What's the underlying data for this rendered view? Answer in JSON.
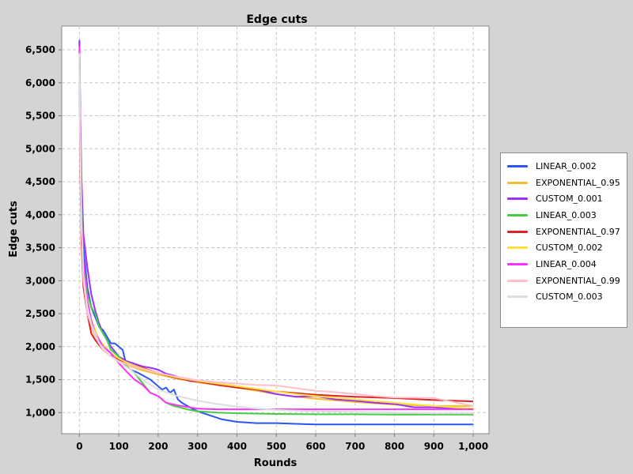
{
  "chart_data": {
    "type": "line",
    "title": "Edge cuts",
    "xlabel": "Rounds",
    "ylabel": "Edge cuts",
    "xlim": [
      -45,
      1040
    ],
    "ylim": [
      680,
      6860
    ],
    "x_ticks": [
      0,
      100,
      200,
      300,
      400,
      500,
      600,
      700,
      800,
      900,
      1000
    ],
    "x_tick_labels": [
      "0",
      "100",
      "200",
      "300",
      "400",
      "500",
      "600",
      "700",
      "800",
      "900",
      "1,000"
    ],
    "y_ticks": [
      1000,
      1500,
      2000,
      2500,
      3000,
      3500,
      4000,
      4500,
      5000,
      5500,
      6000,
      6500
    ],
    "y_tick_labels": [
      "1,000",
      "1,500",
      "2,000",
      "2,500",
      "3,000",
      "3,500",
      "4,000",
      "4,500",
      "5,000",
      "5,500",
      "6,000",
      "6,500"
    ],
    "grid": true,
    "legend_position": "right",
    "series": [
      {
        "name": "LINEAR_0.002",
        "color": "#2b55f0",
        "x": [
          0,
          2,
          5,
          10,
          20,
          30,
          40,
          50,
          60,
          70,
          80,
          90,
          100,
          110,
          120,
          130,
          150,
          180,
          200,
          210,
          220,
          230,
          240,
          250,
          260,
          280,
          300,
          330,
          360,
          400,
          450,
          500,
          550,
          600,
          700,
          800,
          900,
          1000
        ],
        "y": [
          6620,
          5500,
          4300,
          3500,
          2900,
          2600,
          2450,
          2300,
          2250,
          2150,
          2050,
          2050,
          2000,
          1950,
          1700,
          1650,
          1600,
          1500,
          1400,
          1350,
          1380,
          1300,
          1350,
          1200,
          1150,
          1080,
          1020,
          960,
          900,
          860,
          840,
          840,
          830,
          820,
          820,
          820,
          820,
          820
        ]
      },
      {
        "name": "EXPONENTIAL_0.95",
        "color": "#f0c030",
        "x": [
          0,
          2,
          5,
          10,
          20,
          30,
          40,
          60,
          80,
          100,
          130,
          160,
          200,
          250,
          300,
          350,
          400,
          450,
          500,
          550,
          600,
          700,
          800,
          900,
          1000
        ],
        "y": [
          6400,
          5000,
          3900,
          3100,
          2600,
          2300,
          2150,
          1950,
          1850,
          1770,
          1700,
          1640,
          1580,
          1510,
          1460,
          1420,
          1380,
          1330,
          1280,
          1240,
          1210,
          1160,
          1120,
          1100,
          1100
        ]
      },
      {
        "name": "CUSTOM_0.001",
        "color": "#9b30ff",
        "x": [
          0,
          2,
          5,
          10,
          20,
          30,
          40,
          50,
          60,
          80,
          100,
          120,
          140,
          160,
          180,
          200,
          220,
          240,
          260,
          280,
          300,
          350,
          400,
          450,
          500,
          550,
          600,
          650,
          700,
          750,
          800,
          850,
          900,
          950,
          1000
        ],
        "y": [
          6650,
          5600,
          4600,
          3700,
          3200,
          2800,
          2550,
          2350,
          2200,
          2000,
          1850,
          1780,
          1740,
          1700,
          1680,
          1650,
          1590,
          1560,
          1520,
          1480,
          1470,
          1440,
          1400,
          1350,
          1280,
          1240,
          1250,
          1200,
          1180,
          1150,
          1130,
          1080,
          1080,
          1060,
          1050
        ]
      },
      {
        "name": "LINEAR_0.003",
        "color": "#44cc44",
        "x": [
          0,
          2,
          5,
          10,
          20,
          30,
          40,
          50,
          60,
          70,
          80,
          100,
          120,
          140,
          160,
          180,
          200,
          220,
          240,
          260,
          280,
          300,
          350,
          400,
          500,
          600,
          700,
          800,
          900,
          1000
        ],
        "y": [
          6500,
          5300,
          4200,
          3300,
          2800,
          2600,
          2500,
          2300,
          2200,
          2100,
          1950,
          1850,
          1700,
          1600,
          1450,
          1300,
          1250,
          1150,
          1100,
          1070,
          1040,
          1020,
          1000,
          990,
          980,
          975,
          975,
          970,
          970,
          970
        ]
      },
      {
        "name": "EXPONENTIAL_0.97",
        "color": "#dd2222",
        "x": [
          0,
          2,
          5,
          10,
          20,
          30,
          40,
          60,
          80,
          100,
          130,
          160,
          200,
          250,
          300,
          350,
          400,
          450,
          500,
          600,
          700,
          800,
          900,
          1000
        ],
        "y": [
          6300,
          4800,
          3600,
          2900,
          2500,
          2200,
          2100,
          1950,
          1860,
          1800,
          1730,
          1680,
          1600,
          1520,
          1470,
          1420,
          1380,
          1350,
          1320,
          1270,
          1240,
          1220,
          1190,
          1170
        ]
      },
      {
        "name": "CUSTOM_0.002",
        "color": "#ffe040",
        "x": [
          0,
          2,
          5,
          10,
          20,
          30,
          50,
          80,
          100,
          130,
          160,
          200,
          250,
          300,
          350,
          400,
          450,
          500,
          550,
          600,
          700,
          800,
          900,
          1000
        ],
        "y": [
          6450,
          5200,
          4000,
          3200,
          2700,
          2400,
          2100,
          1900,
          1820,
          1730,
          1670,
          1600,
          1530,
          1480,
          1440,
          1400,
          1360,
          1320,
          1280,
          1250,
          1200,
          1150,
          1100,
          1060
        ]
      },
      {
        "name": "LINEAR_0.004",
        "color": "#ff33ff",
        "x": [
          0,
          2,
          5,
          10,
          20,
          30,
          40,
          60,
          80,
          100,
          120,
          140,
          160,
          180,
          200,
          220,
          250,
          280,
          300,
          350,
          400,
          500,
          600,
          700,
          800,
          900,
          1000
        ],
        "y": [
          6550,
          5200,
          4000,
          3300,
          2700,
          2400,
          2200,
          2000,
          1900,
          1750,
          1620,
          1500,
          1420,
          1300,
          1250,
          1150,
          1110,
          1080,
          1060,
          1050,
          1050,
          1050,
          1050,
          1050,
          1050,
          1050,
          1050
        ]
      },
      {
        "name": "EXPONENTIAL_0.99",
        "color": "#ffc0cb",
        "x": [
          0,
          2,
          5,
          10,
          20,
          40,
          60,
          80,
          100,
          130,
          160,
          200,
          250,
          300,
          350,
          400,
          450,
          500,
          550,
          600,
          650,
          700,
          750,
          800,
          900,
          1000
        ],
        "y": [
          6400,
          5000,
          3800,
          3000,
          2500,
          2150,
          1950,
          1850,
          1780,
          1710,
          1660,
          1600,
          1540,
          1490,
          1460,
          1440,
          1420,
          1410,
          1370,
          1330,
          1310,
          1280,
          1250,
          1230,
          1220,
          1100
        ]
      },
      {
        "name": "CUSTOM_0.003",
        "color": "#dddddd",
        "x": [
          0,
          2,
          5,
          10,
          20,
          30,
          50,
          80,
          100,
          130,
          160,
          200,
          250,
          300,
          350,
          400,
          450,
          500,
          600,
          700,
          800,
          900,
          1000
        ],
        "y": [
          6450,
          5100,
          3900,
          3100,
          2600,
          2350,
          2050,
          1850,
          1770,
          1650,
          1500,
          1350,
          1250,
          1180,
          1130,
          1090,
          1060,
          1040,
          1020,
          1010,
          1000,
          990,
          990
        ]
      }
    ]
  }
}
